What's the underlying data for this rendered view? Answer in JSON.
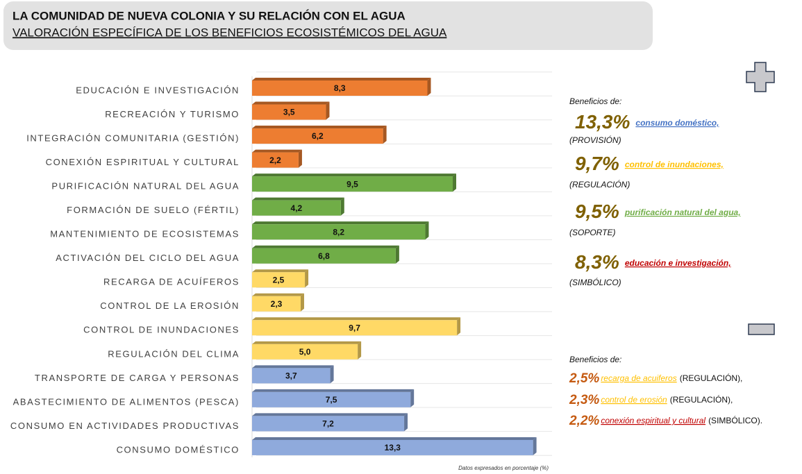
{
  "chart_data": {
    "type": "barh",
    "title": "LA COMUNIDAD DE NUEVA COLONIA Y SU RELACIÓN CON EL AGUA",
    "subtitle": "VALORACIÓN ESPECÍFICA DE LOS BENEFICIOS ECOSISTÉMICOS DEL AGUA",
    "categories": [
      "EDUCACIÓN E INVESTIGACIÓN",
      "RECREACIÓN Y TURISMO",
      "INTEGRACIÓN COMUNITARIA (GESTIÓN)",
      "CONEXIÓN ESPIRITUAL Y CULTURAL",
      "PURIFICACIÓN NATURAL DEL AGUA",
      "FORMACIÓN DE SUELO (FÉRTIL)",
      "MANTENIMIENTO DE ECOSISTEMAS",
      "ACTIVACIÓN DEL CICLO DEL AGUA",
      "RECARGA DE ACUÍFEROS",
      "CONTROL DE LA EROSIÓN",
      "CONTROL DE INUNDACIONES",
      "REGULACIÓN DEL CLIMA",
      "TRANSPORTE DE CARGA Y PERSONAS",
      "ABASTECIMIENTO DE ALIMENTOS (PESCA)",
      "CONSUMO EN ACTIVIDADES PRODUCTIVAS",
      "CONSUMO DOMÉSTICO"
    ],
    "values": [
      8.3,
      3.5,
      6.2,
      2.2,
      9.5,
      4.2,
      8.2,
      6.8,
      2.5,
      2.3,
      9.7,
      5.0,
      3.7,
      7.5,
      7.2,
      13.3
    ],
    "value_labels": [
      "8,3",
      "3,5",
      "6,2",
      "2,2",
      "9,5",
      "4,2",
      "8,2",
      "6,8",
      "2,5",
      "2,3",
      "9,7",
      "5,0",
      "3,7",
      "7,5",
      "7,2",
      "13,3"
    ],
    "colors": [
      "#ed7d31",
      "#ed7d31",
      "#ed7d31",
      "#ed7d31",
      "#70ad47",
      "#70ad47",
      "#70ad47",
      "#70ad47",
      "#ffd966",
      "#ffd966",
      "#ffd966",
      "#ffd966",
      "#8faadc",
      "#8faadc",
      "#8faadc",
      "#8faadc"
    ],
    "xlim": [
      0,
      14.2
    ],
    "note": "Datos expresados en porcentaje (%)",
    "annotations": {
      "plus": {
        "heading": "Beneficios de:",
        "items": [
          {
            "pct": "13,3%",
            "text": "consumo doméstico,",
            "group": "(PROVISIÓN)",
            "color": "#4472c4"
          },
          {
            "pct": "9,7%",
            "text": "control de inundaciones,",
            "group": "(REGULACIÓN)",
            "color": "#ffc000"
          },
          {
            "pct": "9,5%",
            "text": "purificación  natural del agua,",
            "group": "(SOPORTE)",
            "color": "#70ad47"
          },
          {
            "pct": "8,3%",
            "text": "educación e investigación,",
            "group": "(SIMBÓLICO)",
            "color": "#c00000"
          }
        ]
      },
      "minus": {
        "heading": "Beneficios de:",
        "items": [
          {
            "pct": "2,5%",
            "text": "recarga de acuiferos",
            "group": "(REGULACIÓN),",
            "color": "#ffc000"
          },
          {
            "pct": "2,3%",
            "text": "control de erosión",
            "group": "(REGULACIÓN),",
            "color": "#ffc000"
          },
          {
            "pct": "2,2%",
            "text": "conexión espiritual y cultural",
            "group": "(SIMBÓLICO).",
            "color": "#c00000"
          }
        ]
      }
    }
  }
}
